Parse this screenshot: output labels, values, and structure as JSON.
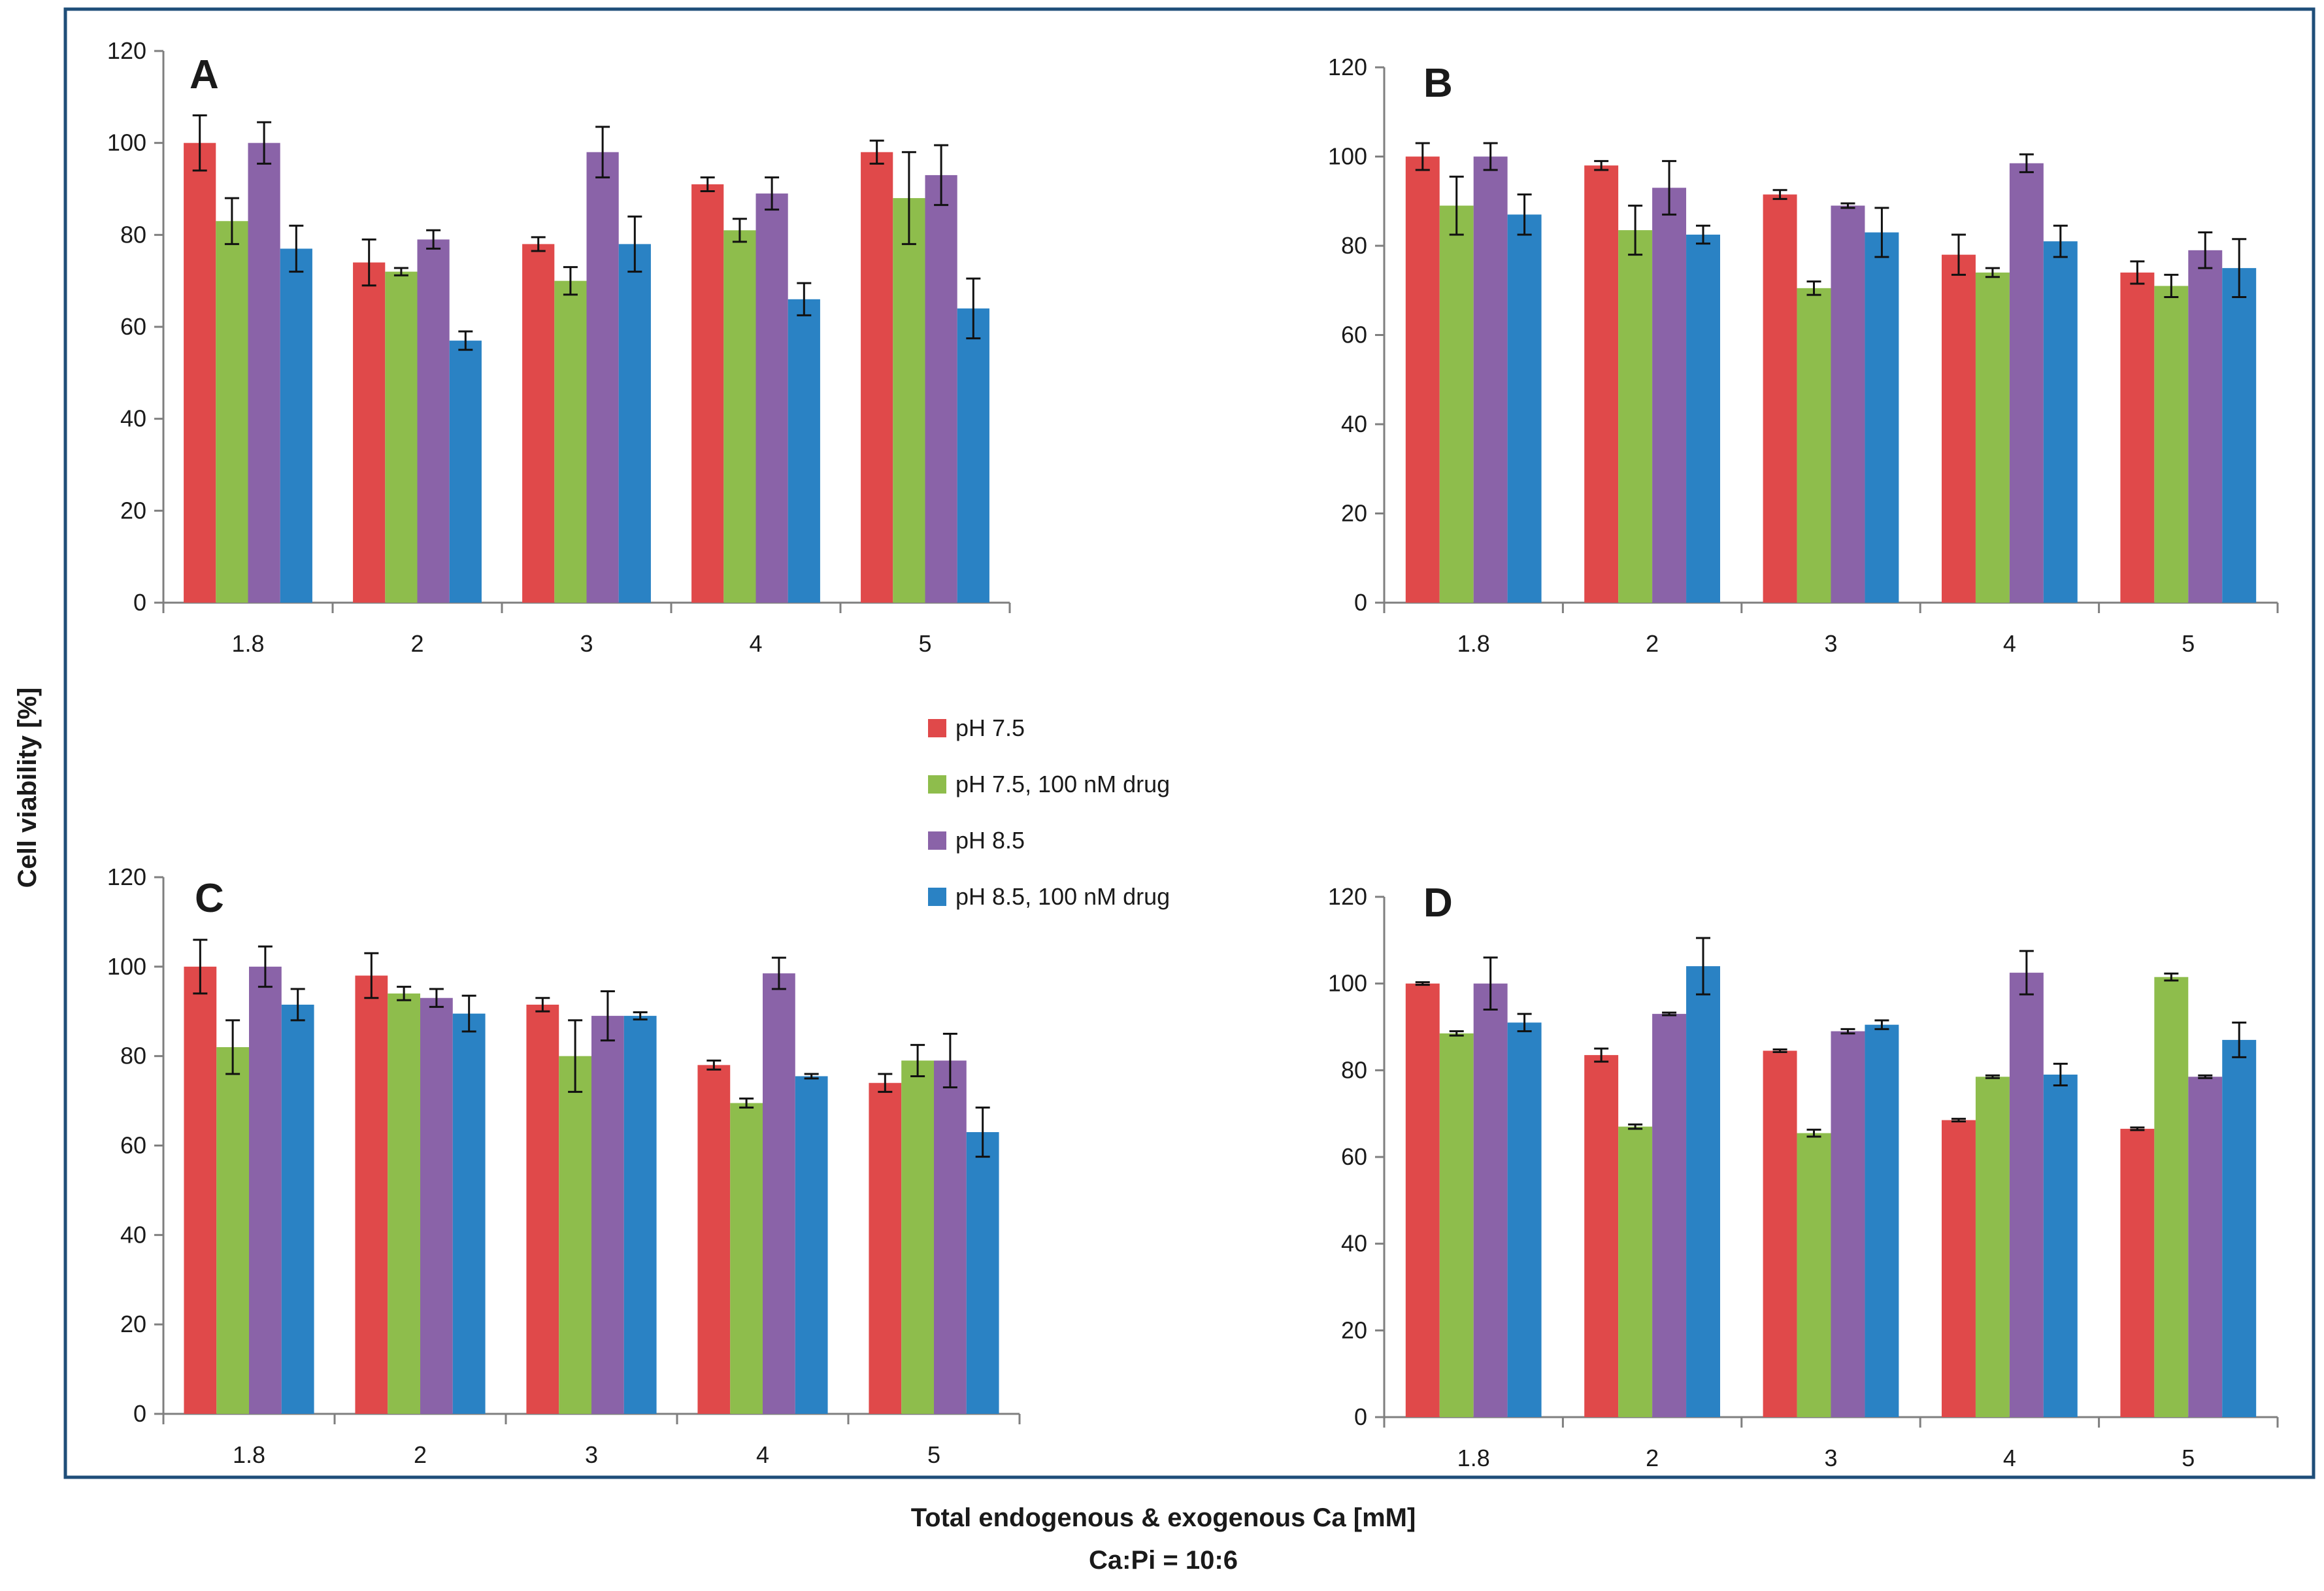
{
  "chart_data": {
    "type": "bar",
    "ylabel": "Cell viability [%]",
    "xlabel": "Total endogenous & exogenous Ca [mM]",
    "xlabel_sub": "Ca:Pi = 10:6",
    "ylim": [
      0,
      120
    ],
    "yticks": [
      0,
      20,
      40,
      60,
      80,
      100,
      120
    ],
    "categories": [
      "1.8",
      "2",
      "3",
      "4",
      "5"
    ],
    "legend": {
      "placement": "center",
      "entries": [
        "pH 7.5",
        "pH 7.5,  100 nM drug",
        "pH 8.5",
        "pH 8.5,  100 nM drug"
      ]
    },
    "series_colors": [
      "#e0494a",
      "#8ebd4c",
      "#8a63a8",
      "#2a82c4"
    ],
    "panels": [
      {
        "label": "A",
        "series": [
          {
            "name": "pH 7.5",
            "values": [
              100,
              74,
              78,
              91,
              98
            ],
            "errors": [
              6,
              5,
              1.5,
              1.5,
              2.5
            ]
          },
          {
            "name": "pH 7.5,  100 nM drug",
            "values": [
              83,
              72,
              70,
              81,
              88
            ],
            "errors": [
              5,
              0.8,
              3,
              2.5,
              10
            ]
          },
          {
            "name": "pH 8.5",
            "values": [
              100,
              79,
              98,
              89,
              93
            ],
            "errors": [
              4.5,
              2,
              5.5,
              3.5,
              6.5
            ]
          },
          {
            "name": "pH 8.5,  100 nM drug",
            "values": [
              77,
              57,
              78,
              66,
              64
            ],
            "errors": [
              5,
              2,
              6,
              3.5,
              6.5
            ]
          }
        ]
      },
      {
        "label": "B",
        "series": [
          {
            "name": "pH 7.5",
            "values": [
              100,
              98,
              91.5,
              78,
              74
            ],
            "errors": [
              3,
              1,
              1,
              4.5,
              2.5
            ]
          },
          {
            "name": "pH 7.5,  100 nM drug",
            "values": [
              89,
              83.5,
              70.5,
              74,
              71
            ],
            "errors": [
              6.5,
              5.5,
              1.5,
              1,
              2.5
            ]
          },
          {
            "name": "pH 8.5",
            "values": [
              100,
              93,
              89,
              98.5,
              79
            ],
            "errors": [
              3,
              6,
              0.5,
              2,
              4
            ]
          },
          {
            "name": "pH 8.5,  100 nM drug",
            "values": [
              87,
              82.5,
              83,
              81,
              75
            ],
            "errors": [
              4.5,
              2,
              5.5,
              3.5,
              6.5
            ]
          }
        ]
      },
      {
        "label": "C",
        "series": [
          {
            "name": "pH 7.5",
            "values": [
              100,
              98,
              91.5,
              78,
              74
            ],
            "errors": [
              6,
              5,
              1.5,
              1,
              2
            ]
          },
          {
            "name": "pH 7.5,  100 nM drug",
            "values": [
              82,
              94,
              80,
              69.5,
              79
            ],
            "errors": [
              6,
              1.5,
              8,
              1,
              3.5
            ]
          },
          {
            "name": "pH 8.5",
            "values": [
              100,
              93,
              89,
              98.5,
              79
            ],
            "errors": [
              4.5,
              2,
              5.5,
              3.5,
              6
            ]
          },
          {
            "name": "pH 8.5,  100 nM drug",
            "values": [
              91.5,
              89.5,
              89,
              75.5,
              63
            ],
            "errors": [
              3.5,
              4,
              0.8,
              0.5,
              5.5
            ]
          }
        ]
      },
      {
        "label": "D",
        "series": [
          {
            "name": "pH 7.5",
            "values": [
              100,
              83.5,
              84.5,
              68.5,
              66.5
            ],
            "errors": [
              0.3,
              1.5,
              0.3,
              0.3,
              0.3
            ]
          },
          {
            "name": "pH 7.5,  100 nM drug",
            "values": [
              88.5,
              67,
              65.5,
              78.5,
              101.5
            ],
            "errors": [
              0.5,
              0.5,
              0.8,
              0.3,
              0.8
            ]
          },
          {
            "name": "pH 8.5",
            "values": [
              100,
              93,
              89,
              102.5,
              78.5
            ],
            "errors": [
              6,
              0.3,
              0.5,
              5,
              0.3
            ]
          },
          {
            "name": "pH 8.5,  100 nM drug",
            "values": [
              91,
              104,
              90.5,
              79,
              87
            ],
            "errors": [
              2,
              6.5,
              1,
              2.5,
              4
            ]
          }
        ]
      }
    ]
  }
}
